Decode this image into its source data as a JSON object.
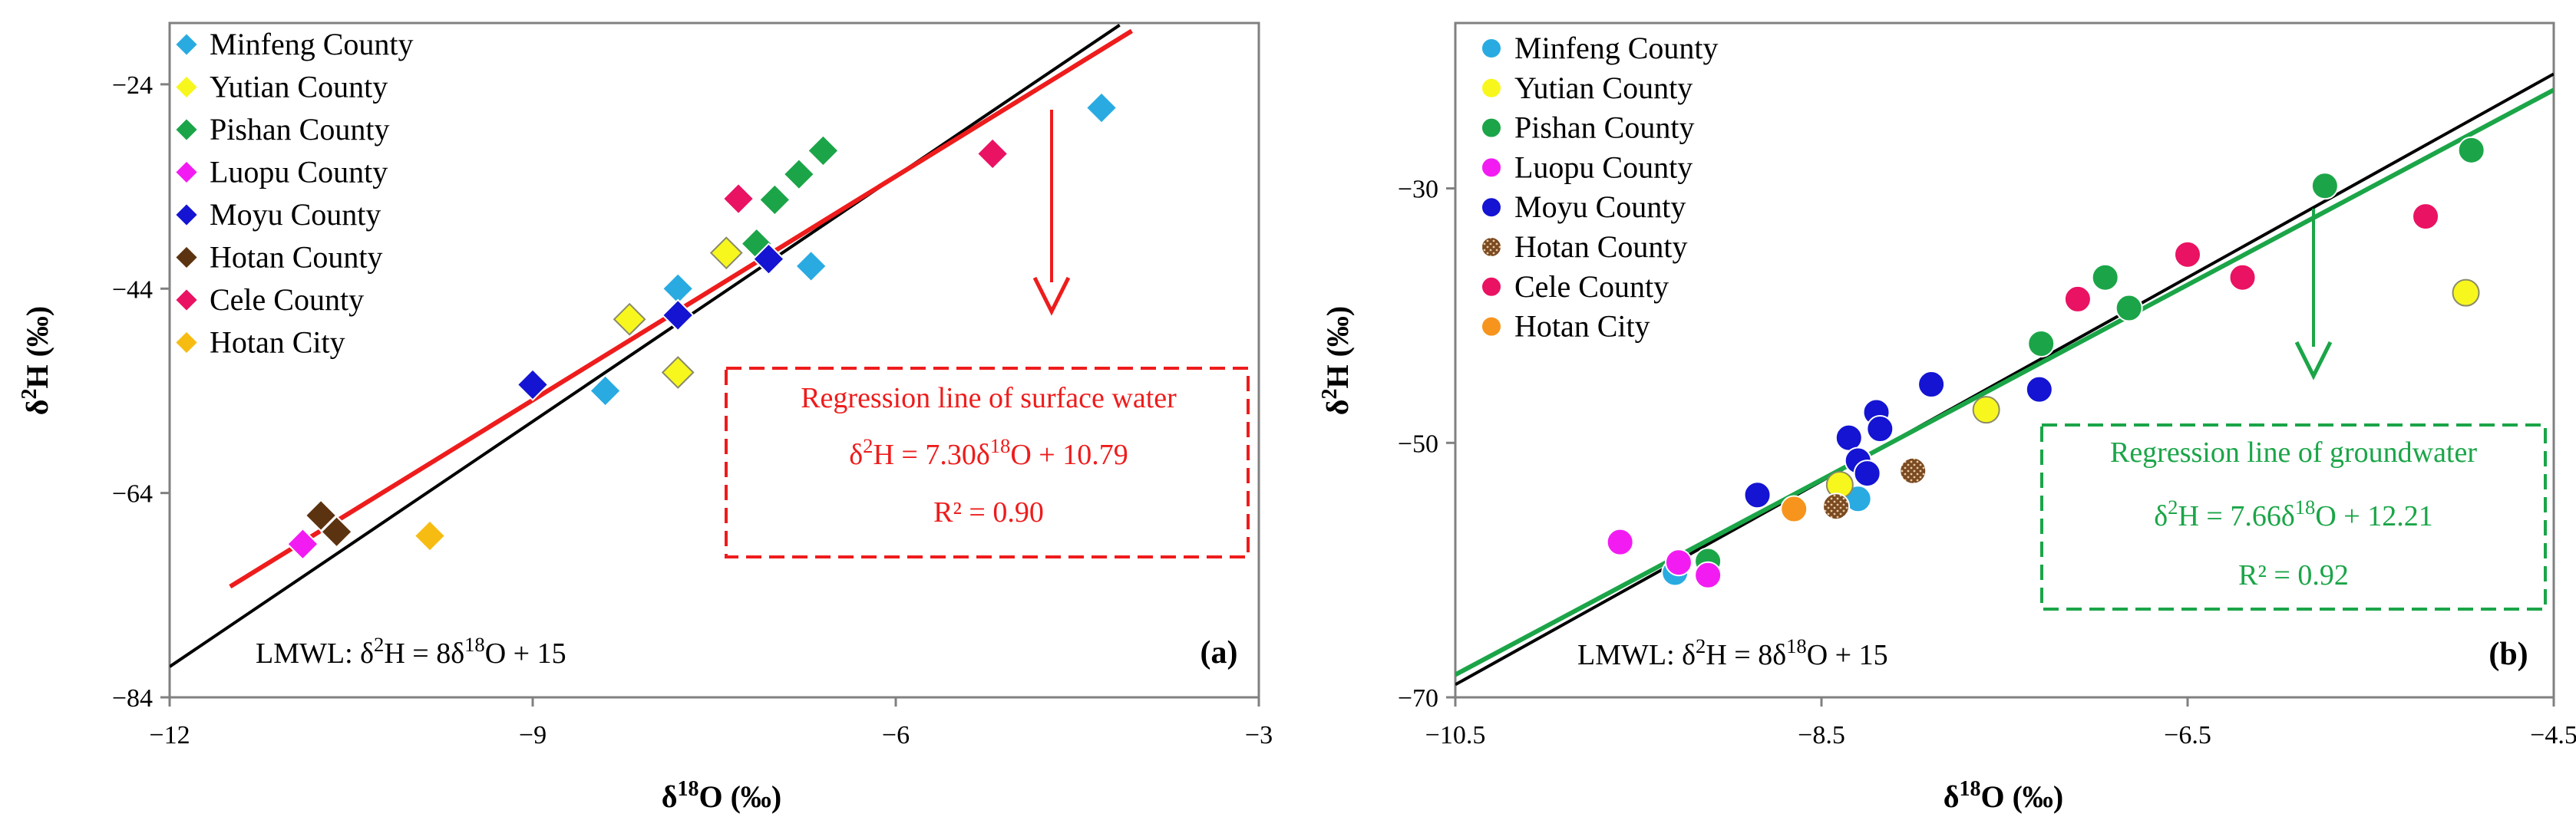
{
  "chart_data": [
    {
      "type": "scatter",
      "panel_label": "(a)",
      "marker": "diamond",
      "xlabel": "δ18O (‰)",
      "ylabel": "δ2H (‰)",
      "xlim": [
        -12,
        -3
      ],
      "ylim": [
        -84,
        -18
      ],
      "xticks": [
        "−12",
        "−9",
        "−6",
        "−3"
      ],
      "yticks": [
        "−24",
        "−44",
        "−64",
        "−84"
      ],
      "xtick_values": [
        -12,
        -9,
        -6,
        -3
      ],
      "ytick_values": [
        -24,
        -44,
        -64,
        -84
      ],
      "legend": [
        {
          "name": "Minfeng County",
          "color": "#29ABE2"
        },
        {
          "name": "Yutian County",
          "color": "#F7F71E"
        },
        {
          "name": "Pishan County",
          "color": "#1BA548"
        },
        {
          "name": "Luopu County",
          "color": "#F21CF2"
        },
        {
          "name": "Moyu County",
          "color": "#1414D2"
        },
        {
          "name": "Hotan County",
          "color": "#5C3310"
        },
        {
          "name": "Cele County",
          "color": "#EA1262"
        },
        {
          "name": "Hotan City",
          "color": "#F7BC12"
        }
      ],
      "series": [
        {
          "name": "Minfeng County",
          "points": [
            [
              -4.3,
              -26.3
            ],
            [
              -7.8,
              -44.0
            ],
            [
              -6.7,
              -41.8
            ],
            [
              -8.4,
              -54.0
            ]
          ]
        },
        {
          "name": "Yutian County",
          "points": [
            [
              -7.4,
              -40.5
            ],
            [
              -8.2,
              -47.0
            ],
            [
              -7.8,
              -52.2
            ]
          ]
        },
        {
          "name": "Pishan County",
          "points": [
            [
              -6.6,
              -30.5
            ],
            [
              -6.8,
              -32.8
            ],
            [
              -7.0,
              -35.3
            ],
            [
              -7.15,
              -39.6
            ]
          ]
        },
        {
          "name": "Luopu County",
          "points": [
            [
              -10.9,
              -69.0
            ]
          ]
        },
        {
          "name": "Moyu County",
          "points": [
            [
              -9.0,
              -53.4
            ],
            [
              -7.8,
              -46.6
            ],
            [
              -7.05,
              -41.1
            ]
          ]
        },
        {
          "name": "Hotan County",
          "points": [
            [
              -10.75,
              -66.2
            ],
            [
              -10.62,
              -67.8
            ]
          ]
        },
        {
          "name": "Cele County",
          "points": [
            [
              -5.2,
              -30.8
            ],
            [
              -7.3,
              -35.2
            ]
          ]
        },
        {
          "name": "Hotan City",
          "points": [
            [
              -9.85,
              -68.2
            ]
          ]
        }
      ],
      "lines": [
        {
          "name": "LMWL",
          "slope": 8,
          "intercept": 15,
          "color": "#000000",
          "x_range": [
            -12,
            -4.15
          ]
        },
        {
          "name": "Regression line of surface water",
          "slope": 7.3,
          "intercept": 10.79,
          "color": "#EE1C1C",
          "x_range": [
            -11.5,
            -4.05
          ]
        }
      ],
      "box": {
        "title": "Regression line of surface water",
        "equation": "δ2H = 7.30δ18O + 10.79",
        "r2": "R² = 0.90",
        "color": "#EE1C1C"
      },
      "lmwl_text": "LMWL:  δ2H = 8δ18O + 15"
    },
    {
      "type": "scatter",
      "panel_label": "(b)",
      "marker": "circle",
      "xlabel": "δ18O (‰)",
      "ylabel": "δ2H (‰)",
      "xlim": [
        -10.5,
        -4.5
      ],
      "ylim": [
        -70,
        -17
      ],
      "xticks": [
        "−10.5",
        "−8.5",
        "−6.5",
        "−4.5"
      ],
      "yticks": [
        "−30",
        "−50",
        "−70"
      ],
      "xtick_values": [
        -10.5,
        -8.5,
        -6.5,
        -4.5
      ],
      "ytick_values": [
        -30,
        -50,
        -70
      ],
      "legend": [
        {
          "name": "Minfeng County",
          "color": "#29ABE2"
        },
        {
          "name": "Yutian County",
          "color": "#F7F71E"
        },
        {
          "name": "Pishan County",
          "color": "#1BA548"
        },
        {
          "name": "Luopu County",
          "color": "#F21CF2"
        },
        {
          "name": "Moyu County",
          "color": "#1414D2"
        },
        {
          "name": "Hotan County",
          "color": "#7A4A22"
        },
        {
          "name": "Cele County",
          "color": "#EA1262"
        },
        {
          "name": "Hotan City",
          "color": "#F7941D"
        }
      ],
      "series": [
        {
          "name": "Minfeng County",
          "points": [
            [
              -9.3,
              -60.2
            ],
            [
              -8.3,
              -54.4
            ]
          ]
        },
        {
          "name": "Yutian County",
          "points": [
            [
              -4.98,
              -38.2
            ],
            [
              -7.6,
              -47.4
            ],
            [
              -8.4,
              -53.3
            ]
          ]
        },
        {
          "name": "Pishan County",
          "points": [
            [
              -4.95,
              -27.0
            ],
            [
              -5.75,
              -29.8
            ],
            [
              -6.95,
              -37.0
            ],
            [
              -6.82,
              -39.4
            ],
            [
              -7.3,
              -42.2
            ],
            [
              -9.12,
              -59.3
            ]
          ]
        },
        {
          "name": "Luopu County",
          "points": [
            [
              -9.6,
              -57.8
            ],
            [
              -9.28,
              -59.4
            ],
            [
              -9.12,
              -60.4
            ]
          ]
        },
        {
          "name": "Moyu County",
          "points": [
            [
              -8.85,
              -54.1
            ],
            [
              -8.35,
              -49.6
            ],
            [
              -8.3,
              -51.4
            ],
            [
              -8.2,
              -47.6
            ],
            [
              -8.18,
              -48.9
            ],
            [
              -7.9,
              -45.4
            ],
            [
              -7.31,
              -45.8
            ],
            [
              -8.25,
              -52.4
            ]
          ]
        },
        {
          "name": "Hotan County",
          "points": [
            [
              -8.42,
              -55.0
            ],
            [
              -8.0,
              -52.2
            ]
          ]
        },
        {
          "name": "Cele County",
          "points": [
            [
              -7.1,
              -38.7
            ],
            [
              -6.5,
              -35.2
            ],
            [
              -6.2,
              -37.0
            ],
            [
              -5.2,
              -32.2
            ]
          ]
        },
        {
          "name": "Hotan City",
          "points": [
            [
              -8.65,
              -55.2
            ]
          ]
        }
      ],
      "lines": [
        {
          "name": "LMWL",
          "slope": 8,
          "intercept": 15,
          "color": "#000000",
          "x_range": [
            -10.5,
            -4.5
          ]
        },
        {
          "name": "Regression line of groundwater",
          "slope": 7.66,
          "intercept": 12.21,
          "color": "#1BA548",
          "x_range": [
            -10.5,
            -4.5
          ]
        }
      ],
      "box": {
        "title": "Regression line of groundwater",
        "equation": "δ2H = 7.66δ18O + 12.21",
        "r2": "R² = 0.92",
        "color": "#1BA548"
      },
      "lmwl_text": "LMWL:  δ2H = 8δ18O + 15"
    }
  ]
}
